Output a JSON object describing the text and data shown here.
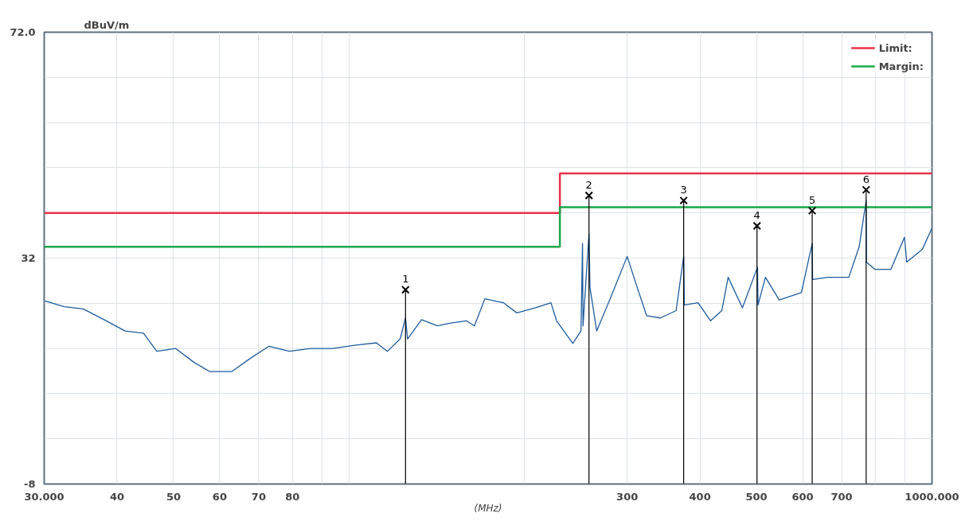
{
  "chart_data": {
    "type": "line",
    "ylabel": "dBuV/m",
    "xlabel": "(MHz)",
    "log": "x",
    "grid": true,
    "legend": "top right",
    "xlim": [
      30,
      1000
    ],
    "ylim": [
      -8,
      72
    ],
    "xticks": [
      {
        "value": 30,
        "label": "30.000"
      },
      40,
      50,
      60,
      70,
      80,
      {
        "value": 90,
        "label": null
      },
      {
        "value": 100,
        "label": null
      },
      {
        "value": 200,
        "label": null
      },
      300,
      400,
      500,
      600,
      700,
      {
        "value": 800,
        "label": null
      },
      {
        "value": 900,
        "label": null
      },
      {
        "value": 1000,
        "label": "1000.000"
      }
    ],
    "yticks": [
      {
        "value": -8,
        "label": "-8"
      },
      {
        "value": 0,
        "label": null
      },
      {
        "value": 8,
        "label": null
      },
      {
        "value": 16,
        "label": null
      },
      {
        "value": 24,
        "label": null
      },
      32,
      {
        "value": 40,
        "label": null
      },
      {
        "value": 48,
        "label": null
      },
      {
        "value": 56,
        "label": null
      },
      {
        "value": 64,
        "label": null
      },
      {
        "value": 72,
        "label": "72.0"
      }
    ],
    "series": [
      {
        "color": "#1f5c9e",
        "x": [
          30.1,
          32.5,
          35.0,
          38.0,
          41.3,
          44.4,
          46.8,
          50.4,
          54.1,
          57.7,
          62.9,
          67.6,
          72.9,
          79.0,
          86.0,
          93.6,
          102.8,
          111.4,
          116.4,
          122.4,
          125,
          126,
          133.2,
          141.7,
          149.5,
          159.0,
          164.1,
          171.0,
          184,
          194,
          209,
          222,
          227,
          242,
          250,
          251.5,
          252,
          258,
          259,
          266,
          281,
          300,
          311,
          324,
          342,
          364,
          375,
          376,
          397,
          417,
          436,
          447,
          473,
          502,
          503,
          518,
          547,
          597,
          623,
          624,
          662,
          720,
          750,
          771,
          772,
          798,
          850,
          897,
          905,
          963,
          1000
        ],
        "values": [
          24.4,
          23.4,
          23.0,
          21.1,
          19.1,
          18.7,
          15.5,
          16.0,
          13.6,
          11.9,
          11.9,
          14.2,
          16.4,
          15.5,
          16.0,
          16.0,
          16.6,
          17.0,
          15.5,
          17.7,
          21.4,
          17.7,
          21.1,
          20.0,
          20.5,
          20.9,
          20.0,
          24.8,
          24.1,
          22.3,
          23.2,
          24.1,
          20.9,
          16.9,
          19.1,
          34.6,
          20.0,
          36.3,
          26.8,
          19.1,
          25.0,
          32.3,
          27.3,
          21.8,
          21.4,
          22.7,
          32.3,
          23.7,
          24.1,
          20.9,
          22.7,
          28.6,
          23.2,
          30.4,
          23.7,
          28.6,
          24.6,
          25.9,
          34.6,
          28.2,
          28.6,
          28.6,
          34.0,
          42.2,
          31.3,
          30.0,
          30.0,
          35.7,
          31.3,
          33.6,
          37.3
        ]
      },
      {
        "type": "step",
        "name": "Limit:",
        "color": "#e8324c",
        "x": [
          30,
          230,
          1000
        ],
        "values": [
          40,
          47,
          47
        ]
      },
      {
        "type": "step",
        "name": "Margin:",
        "color": "#1aa84a",
        "x": [
          30,
          230,
          1000
        ],
        "values": [
          34,
          41,
          41
        ]
      },
      {
        "type": "lollipop",
        "color": "#000000",
        "marker": "cross",
        "x": [
          125,
          258,
          375,
          501,
          623,
          771
        ],
        "values": [
          26.4,
          43.1,
          42.2,
          37.7,
          40.4,
          44.1
        ]
      }
    ],
    "annotations": [
      {
        "text": "1",
        "x": 125,
        "y": 26.4
      },
      {
        "text": "2",
        "x": 258,
        "y": 43.1
      },
      {
        "text": "3",
        "x": 375,
        "y": 42.2
      },
      {
        "text": "4",
        "x": 501,
        "y": 37.7
      },
      {
        "text": "5",
        "x": 623,
        "y": 40.4
      },
      {
        "text": "6",
        "x": 771,
        "y": 44.1
      }
    ]
  }
}
